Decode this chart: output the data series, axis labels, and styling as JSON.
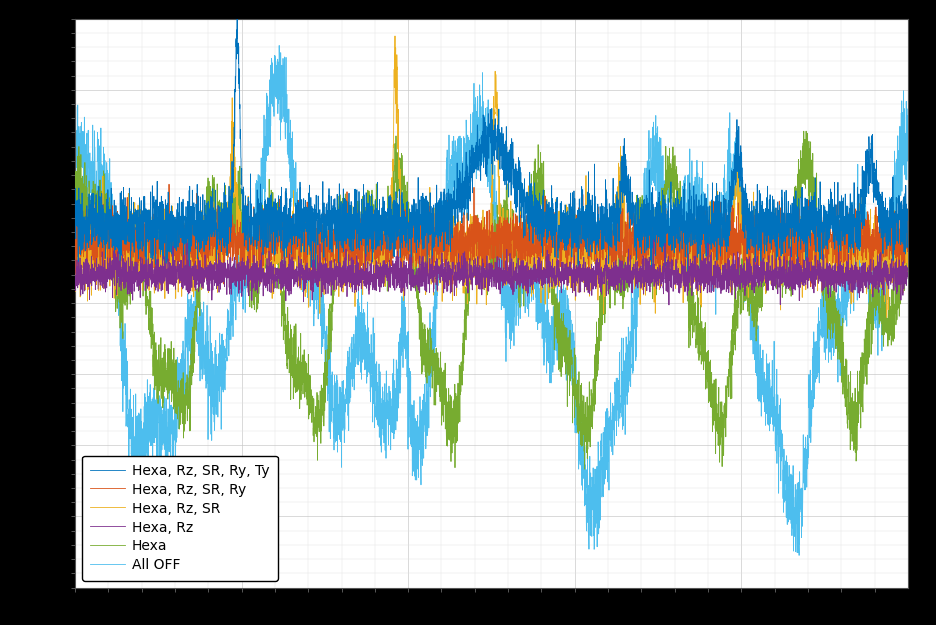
{
  "title": "",
  "background_color": "#000000",
  "plot_background_color": "#ffffff",
  "grid_color": "#c8c8c8",
  "series": [
    {
      "label": "Hexa, Rz, SR, Ry, Ty",
      "color": "#0072bd",
      "zorder": 6
    },
    {
      "label": "Hexa, Rz, SR, Ry",
      "color": "#d95319",
      "zorder": 5
    },
    {
      "label": "Hexa, Rz, SR",
      "color": "#edb120",
      "zorder": 4
    },
    {
      "label": "Hexa, Rz",
      "color": "#7e2f8e",
      "zorder": 7
    },
    {
      "label": "Hexa",
      "color": "#77ac30",
      "zorder": 3
    },
    {
      "label": "All OFF",
      "color": "#4dbeee",
      "zorder": 2
    }
  ],
  "legend_loc": "lower left",
  "legend_fontsize": 10,
  "linewidth": 0.6,
  "n_points": 5000,
  "seed": 42,
  "fig_facecolor": "#000000",
  "axes_facecolor": "#ffffff"
}
